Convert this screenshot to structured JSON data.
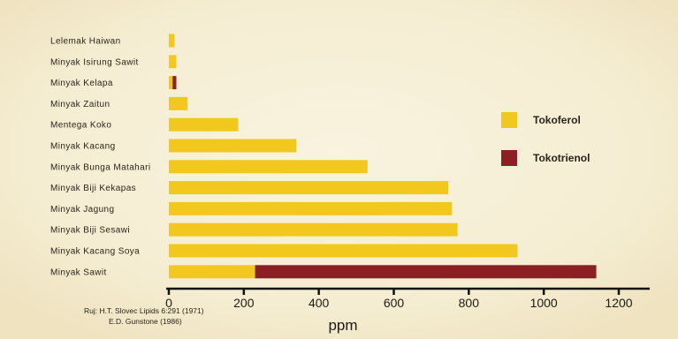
{
  "chart_data": {
    "type": "bar",
    "orientation": "horizontal",
    "stacked": true,
    "categories": [
      "Lelemak Haiwan",
      "Minyak Isirung Sawit",
      "Minyak Kelapa",
      "Minyak Zaitun",
      "Mentega Koko",
      "Minyak Kacang",
      "Minyak Bunga Matahari",
      "Minyak Biji Kekapas",
      "Minyak Jagung",
      "Minyak Biji Sesawi",
      "Minyak Kacang Soya",
      "Minyak Sawit"
    ],
    "series": [
      {
        "name": "Tokoferol",
        "color": "#f2c81e",
        "values": [
          15,
          20,
          10,
          50,
          185,
          340,
          530,
          745,
          755,
          770,
          930,
          230
        ]
      },
      {
        "name": "Tokotrienol",
        "color": "#8c1f24",
        "values": [
          0,
          0,
          10,
          0,
          0,
          0,
          0,
          0,
          0,
          0,
          0,
          910
        ]
      }
    ],
    "xlabel": "ppm",
    "xlim": [
      0,
      1280
    ],
    "xticks": [
      0,
      200,
      400,
      600,
      800,
      1000,
      1200
    ],
    "xtick_labels": [
      "0",
      "200",
      "400",
      "600",
      "800",
      "1000",
      "1200"
    ],
    "grid": false,
    "legend_position": "right",
    "source_lines": [
      "Ruj: H.T. Slovec Lipids 6:291 (1971)",
      "E.D. Gunstone (1986)"
    ]
  }
}
